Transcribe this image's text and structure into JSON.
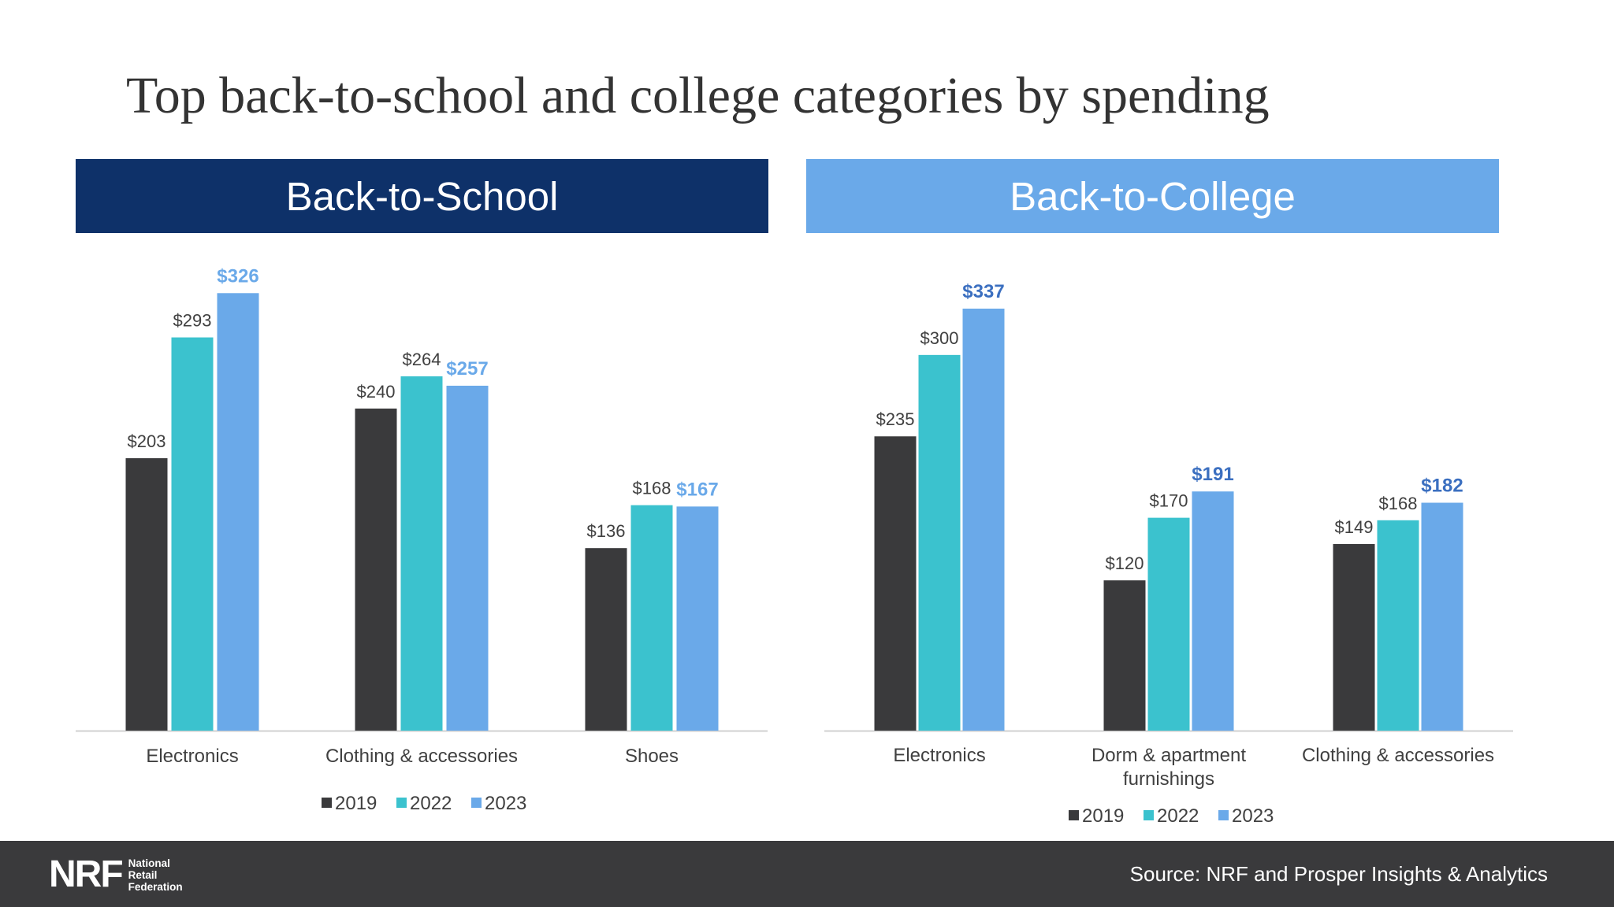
{
  "title": "Top back-to-school and college categories by spending",
  "colors": {
    "2019": "#3a3a3c",
    "2022": "#3bc2ce",
    "2023": "#6aa9e9",
    "header_school_bg": "#0e3169",
    "header_college_bg": "#6aa9e9",
    "label_2023_school": "#6aa9e9",
    "label_2023_college": "#3b6fc0"
  },
  "panels": {
    "school": {
      "header": "Back-to-School"
    },
    "college": {
      "header": "Back-to-College"
    }
  },
  "chart_data": [
    {
      "type": "bar",
      "title": "Back-to-School",
      "categories": [
        "Electronics",
        "Clothing & accessories",
        "Shoes"
      ],
      "series": [
        {
          "name": "2019",
          "values": [
            203,
            240,
            136
          ],
          "labels": [
            "$203",
            "$240",
            "$136"
          ]
        },
        {
          "name": "2022",
          "values": [
            293,
            264,
            168
          ],
          "labels": [
            "$293",
            "$264",
            "$168"
          ]
        },
        {
          "name": "2023",
          "values": [
            326,
            257,
            167
          ],
          "labels": [
            "$326",
            "$257",
            "$167"
          ]
        }
      ],
      "legend_position": "bottom",
      "grid": false
    },
    {
      "type": "bar",
      "title": "Back-to-College",
      "categories": [
        "Electronics",
        "Dorm & apartment furnishings",
        "Clothing & accessories"
      ],
      "series": [
        {
          "name": "2019",
          "values": [
            235,
            120,
            149
          ],
          "labels": [
            "$235",
            "$120",
            "$149"
          ]
        },
        {
          "name": "2022",
          "values": [
            300,
            170,
            168
          ],
          "labels": [
            "$300",
            "$170",
            "$168"
          ]
        },
        {
          "name": "2023",
          "values": [
            337,
            191,
            182
          ],
          "labels": [
            "$337",
            "$191",
            "$182"
          ]
        }
      ],
      "legend_position": "bottom",
      "grid": false
    }
  ],
  "footer": {
    "logo_mark": "NRF",
    "logo_words": [
      "National",
      "Retail",
      "Federation"
    ],
    "source": "Source: NRF and Prosper Insights & Analytics"
  }
}
